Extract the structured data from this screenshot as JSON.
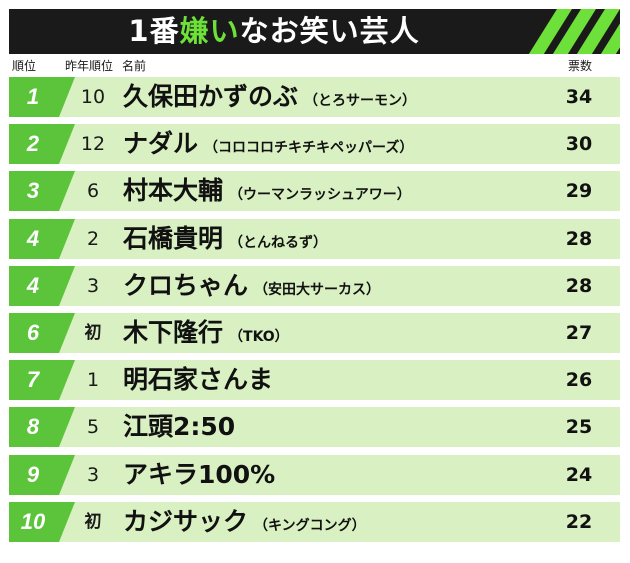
{
  "title": {
    "prefix": "1番",
    "highlight": "嫌い",
    "suffix": "なお笑い芸人"
  },
  "headers": {
    "rank": "順位",
    "prev_rank": "昨年順位",
    "name": "名前",
    "votes": "票数"
  },
  "colors": {
    "accent": "#6de03a",
    "badge": "#5cc43a",
    "row_bg": "#d9f0c2",
    "title_bg": "#1a1a1a"
  },
  "chart_data": {
    "type": "table",
    "title": "1番嫌いなお笑い芸人",
    "columns": [
      "順位",
      "昨年順位",
      "名前",
      "票数"
    ],
    "rows": [
      {
        "rank": "1",
        "prev": "10",
        "name": "久保田かずのぶ",
        "group": "（とろサーモン）",
        "votes": 34
      },
      {
        "rank": "2",
        "prev": "12",
        "name": "ナダル",
        "group": "（コロコロチキチキペッパーズ）",
        "votes": 30
      },
      {
        "rank": "3",
        "prev": "6",
        "name": "村本大輔",
        "group": "（ウーマンラッシュアワー）",
        "votes": 29
      },
      {
        "rank": "4",
        "prev": "2",
        "name": "石橋貴明",
        "group": "（とんねるず）",
        "votes": 28
      },
      {
        "rank": "4",
        "prev": "3",
        "name": "クロちゃん",
        "group": "（安田大サーカス）",
        "votes": 28
      },
      {
        "rank": "6",
        "prev": "初",
        "name": "木下隆行",
        "group": "（TKO）",
        "votes": 27
      },
      {
        "rank": "7",
        "prev": "1",
        "name": "明石家さんま",
        "group": "",
        "votes": 26
      },
      {
        "rank": "8",
        "prev": "5",
        "name": "江頭2:50",
        "group": "",
        "votes": 25
      },
      {
        "rank": "9",
        "prev": "3",
        "name": "アキラ100%",
        "group": "",
        "votes": 24
      },
      {
        "rank": "10",
        "prev": "初",
        "name": "カジサック",
        "group": "（キングコング）",
        "votes": 22
      }
    ]
  }
}
